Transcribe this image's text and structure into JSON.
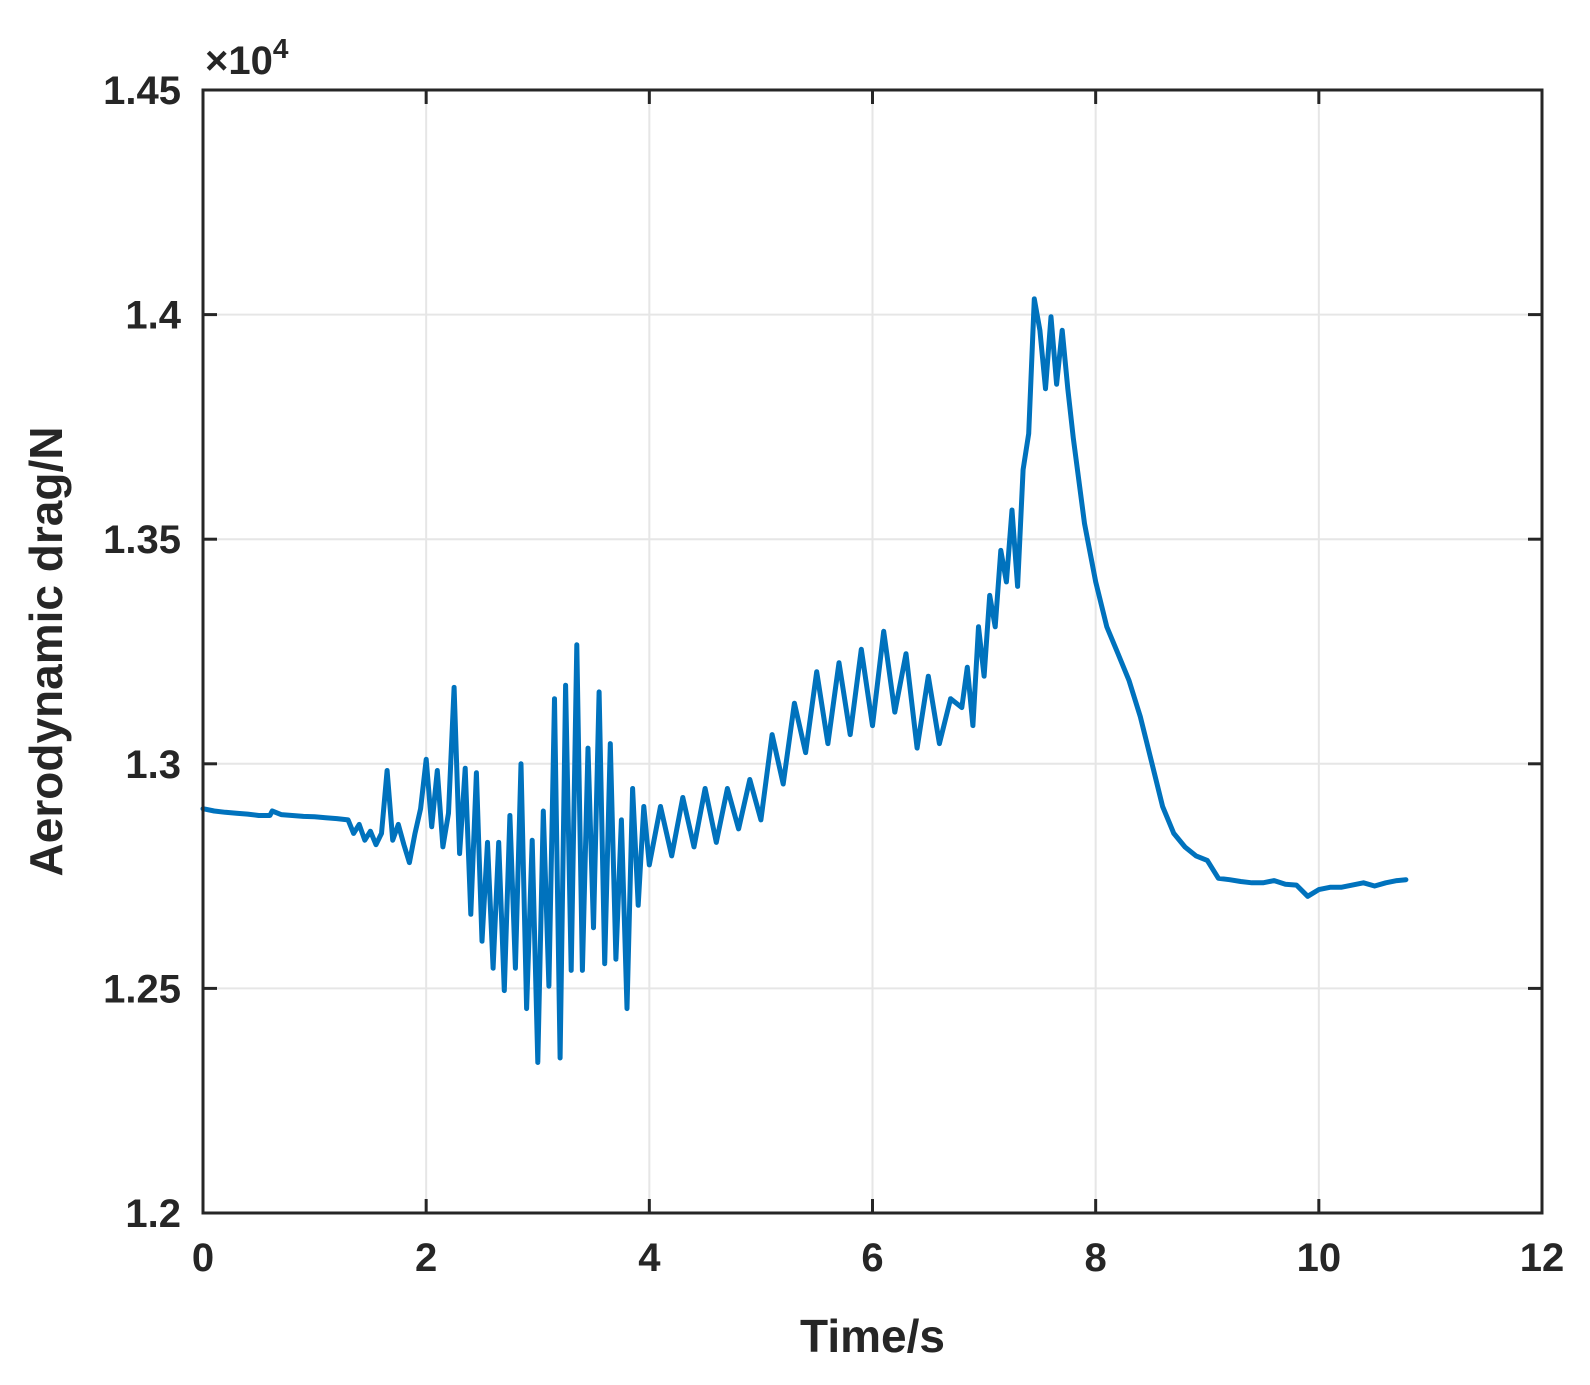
{
  "chart_data": {
    "type": "line",
    "title": "",
    "xlabel": "Time/s",
    "ylabel": "Aerodynamic drag/N",
    "exponent_label": "×10",
    "exponent_power": "4",
    "xlim": [
      0,
      12
    ],
    "ylim": [
      1.2,
      1.45
    ],
    "xticks": [
      0,
      2,
      4,
      6,
      8,
      10,
      12
    ],
    "xtick_labels": [
      "0",
      "2",
      "4",
      "6",
      "8",
      "10",
      "12"
    ],
    "yticks": [
      1.2,
      1.25,
      1.3,
      1.35,
      1.4,
      1.45
    ],
    "ytick_labels": [
      "1.2",
      "1.25",
      "1.3",
      "1.35",
      "1.4",
      "1.45"
    ],
    "grid": true,
    "colors": {
      "line": "#0072BD",
      "axis": "#262626",
      "grid": "#e6e6e6"
    },
    "series": [
      {
        "x": [
          0,
          0.1,
          0.2,
          0.3,
          0.4,
          0.5,
          0.6,
          0.62,
          0.7,
          0.8,
          0.9,
          1.0,
          1.1,
          1.2,
          1.3,
          1.35,
          1.4,
          1.45,
          1.5,
          1.55,
          1.6,
          1.65,
          1.7,
          1.75,
          1.8,
          1.85,
          1.9,
          1.95,
          2.0,
          2.05,
          2.1,
          2.15,
          2.2,
          2.25,
          2.3,
          2.35,
          2.4,
          2.45,
          2.5,
          2.55,
          2.6,
          2.65,
          2.7,
          2.75,
          2.8,
          2.85,
          2.9,
          2.95,
          3.0,
          3.05,
          3.1,
          3.15,
          3.2,
          3.25,
          3.3,
          3.35,
          3.4,
          3.45,
          3.5,
          3.55,
          3.6,
          3.65,
          3.7,
          3.75,
          3.8,
          3.85,
          3.9,
          3.95,
          4.0,
          4.1,
          4.2,
          4.3,
          4.4,
          4.5,
          4.6,
          4.7,
          4.8,
          4.9,
          5.0,
          5.1,
          5.2,
          5.3,
          5.4,
          5.5,
          5.6,
          5.7,
          5.8,
          5.9,
          6.0,
          6.1,
          6.2,
          6.3,
          6.4,
          6.5,
          6.6,
          6.7,
          6.8,
          6.85,
          6.9,
          6.95,
          7.0,
          7.05,
          7.1,
          7.15,
          7.2,
          7.25,
          7.3,
          7.35,
          7.4,
          7.45,
          7.5,
          7.55,
          7.6,
          7.65,
          7.7,
          7.75,
          7.8,
          7.9,
          8.0,
          8.1,
          8.2,
          8.3,
          8.4,
          8.5,
          8.6,
          8.7,
          8.8,
          8.9,
          9.0,
          9.1,
          9.2,
          9.3,
          9.4,
          9.5,
          9.6,
          9.7,
          9.8,
          9.9,
          10.0,
          10.1,
          10.2,
          10.3,
          10.4,
          10.5,
          10.6,
          10.7,
          10.78
        ],
        "y": [
          1.29,
          1.2895,
          1.2892,
          1.289,
          1.2888,
          1.2885,
          1.2885,
          1.2895,
          1.2887,
          1.2885,
          1.2883,
          1.2882,
          1.288,
          1.2878,
          1.2875,
          1.2845,
          1.2865,
          1.283,
          1.285,
          1.282,
          1.2845,
          1.2985,
          1.283,
          1.2865,
          1.282,
          1.278,
          1.2845,
          1.29,
          1.301,
          1.286,
          1.2985,
          1.2815,
          1.289,
          1.317,
          1.28,
          1.299,
          1.2665,
          1.298,
          1.2605,
          1.2825,
          1.2545,
          1.2825,
          1.2495,
          1.2885,
          1.2545,
          1.3,
          1.2455,
          1.283,
          1.2335,
          1.2895,
          1.2505,
          1.3145,
          1.2345,
          1.3175,
          1.254,
          1.3265,
          1.254,
          1.3035,
          1.2635,
          1.316,
          1.2555,
          1.3045,
          1.2565,
          1.2875,
          1.2455,
          1.2945,
          1.2685,
          1.2905,
          1.2775,
          1.2905,
          1.2795,
          1.2925,
          1.2815,
          1.2945,
          1.2825,
          1.2945,
          1.2855,
          1.2965,
          1.2875,
          1.3065,
          1.2955,
          1.3135,
          1.3025,
          1.3205,
          1.3045,
          1.3225,
          1.3065,
          1.3255,
          1.3085,
          1.3295,
          1.3115,
          1.3245,
          1.3035,
          1.3195,
          1.3045,
          1.3145,
          1.3125,
          1.3215,
          1.3085,
          1.3305,
          1.3195,
          1.3375,
          1.3305,
          1.3475,
          1.3405,
          1.3565,
          1.3395,
          1.3655,
          1.3735,
          1.4035,
          1.3965,
          1.3835,
          1.3995,
          1.3845,
          1.3965,
          1.3835,
          1.3725,
          1.3535,
          1.3405,
          1.3305,
          1.3245,
          1.3185,
          1.3105,
          1.3005,
          1.2905,
          1.2845,
          1.2815,
          1.2795,
          1.2785,
          1.2745,
          1.2742,
          1.2738,
          1.2735,
          1.2735,
          1.274,
          1.2732,
          1.273,
          1.2705,
          1.272,
          1.2725,
          1.2725,
          1.273,
          1.2735,
          1.2728,
          1.2735,
          1.274,
          1.2742
        ]
      }
    ]
  }
}
